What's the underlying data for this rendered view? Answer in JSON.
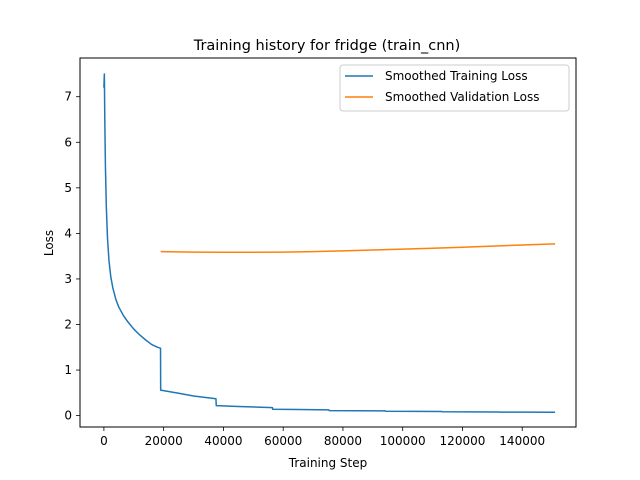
{
  "chart_data": {
    "type": "line",
    "title": "Training history for fridge (train_cnn)",
    "xlabel": "Training Step",
    "ylabel": "Loss",
    "xlim": [
      -8000,
      158000
    ],
    "ylim": [
      -0.25,
      7.85
    ],
    "xticks": [
      0,
      20000,
      40000,
      60000,
      80000,
      100000,
      120000,
      140000
    ],
    "yticks": [
      0,
      1,
      2,
      3,
      4,
      5,
      6,
      7
    ],
    "grid": false,
    "legend": "top-right",
    "series": [
      {
        "name": "Smoothed Training Loss",
        "color": "#1f77b4",
        "x": [
          0,
          150,
          300,
          500,
          800,
          1200,
          1700,
          2300,
          3000,
          4000,
          5000,
          6500,
          8000,
          10000,
          12000,
          14000,
          16000,
          18000,
          18950,
          19000,
          25000,
          30000,
          37500,
          37600,
          45000,
          56400,
          56500,
          65000,
          75300,
          75400,
          85000,
          94200,
          94300,
          104000,
          113100,
          113200,
          122000,
          132000,
          132100,
          141000,
          151000
        ],
        "y": [
          7.2,
          7.5,
          6.5,
          5.5,
          4.6,
          3.9,
          3.4,
          3.05,
          2.8,
          2.55,
          2.38,
          2.2,
          2.06,
          1.9,
          1.77,
          1.66,
          1.56,
          1.5,
          1.48,
          0.56,
          0.49,
          0.43,
          0.37,
          0.22,
          0.2,
          0.175,
          0.14,
          0.135,
          0.125,
          0.11,
          0.107,
          0.103,
          0.095,
          0.093,
          0.09,
          0.085,
          0.083,
          0.08,
          0.077,
          0.076,
          0.075
        ]
      },
      {
        "name": "Smoothed Validation Loss",
        "color": "#ff7f0e",
        "x": [
          19000,
          30000,
          40000,
          50000,
          60000,
          70000,
          80000,
          90000,
          100000,
          110000,
          120000,
          130000,
          140000,
          151000
        ],
        "y": [
          3.6,
          3.59,
          3.585,
          3.585,
          3.59,
          3.6,
          3.615,
          3.635,
          3.655,
          3.675,
          3.695,
          3.72,
          3.745,
          3.77
        ]
      }
    ]
  }
}
